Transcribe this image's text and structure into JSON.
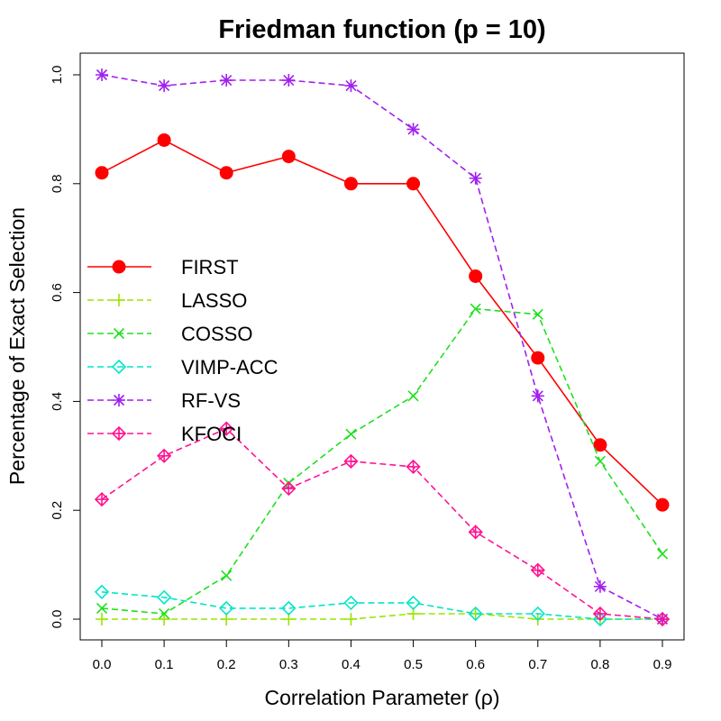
{
  "chart_data": {
    "type": "line",
    "title": "Friedman function (p = 10)",
    "xlabel": "Correlation Parameter (ρ)",
    "ylabel": "Percentage of Exact Selection",
    "x": [
      0.0,
      0.1,
      0.2,
      0.3,
      0.4,
      0.5,
      0.6,
      0.7,
      0.8,
      0.9
    ],
    "x_tick_labels": [
      "0.0",
      "0.1",
      "0.2",
      "0.3",
      "0.4",
      "0.5",
      "0.6",
      "0.7",
      "0.8",
      "0.9"
    ],
    "y_tick_labels": [
      "0.0",
      "0.2",
      "0.4",
      "0.6",
      "0.8",
      "1.0"
    ],
    "xlim": [
      0.0,
      0.9
    ],
    "ylim": [
      0.0,
      1.0
    ],
    "grid": false,
    "legend_position": "left",
    "series": [
      {
        "name": "FIRST",
        "color": "#ff0000",
        "marker": "filled-circle",
        "dashed": false,
        "values": [
          0.82,
          0.88,
          0.82,
          0.85,
          0.8,
          0.8,
          0.63,
          0.48,
          0.32,
          0.21
        ]
      },
      {
        "name": "LASSO",
        "color": "#99e600",
        "marker": "plus",
        "dashed": true,
        "values": [
          0.0,
          0.0,
          0.0,
          0.0,
          0.0,
          0.01,
          0.01,
          0.0,
          0.0,
          0.0
        ]
      },
      {
        "name": "COSSO",
        "color": "#1fe01f",
        "marker": "cross",
        "dashed": true,
        "values": [
          0.02,
          0.01,
          0.08,
          0.25,
          0.34,
          0.41,
          0.57,
          0.56,
          0.29,
          0.12
        ]
      },
      {
        "name": "VIMP-ACC",
        "color": "#00e6c8",
        "marker": "diamond",
        "dashed": true,
        "values": [
          0.05,
          0.04,
          0.02,
          0.02,
          0.03,
          0.03,
          0.01,
          0.01,
          0.0,
          0.0
        ]
      },
      {
        "name": "RF-VS",
        "color": "#a020f0",
        "marker": "asterisk",
        "dashed": true,
        "values": [
          1.0,
          0.98,
          0.99,
          0.99,
          0.98,
          0.9,
          0.81,
          0.41,
          0.06,
          0.0
        ]
      },
      {
        "name": "KFOCI",
        "color": "#ff1493",
        "marker": "diamond-plus",
        "dashed": true,
        "values": [
          0.22,
          0.3,
          0.35,
          0.24,
          0.29,
          0.28,
          0.16,
          0.09,
          0.01,
          0.0
        ]
      }
    ]
  }
}
